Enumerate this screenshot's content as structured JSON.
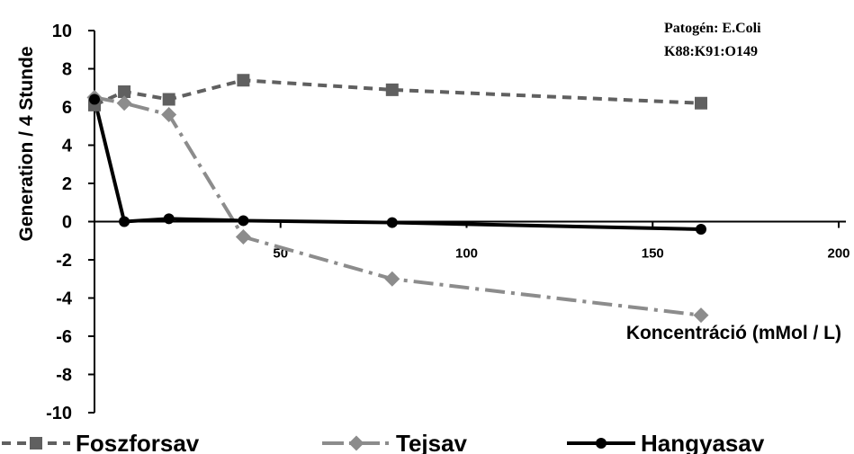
{
  "chart_data": {
    "type": "line",
    "title": "",
    "xlabel": "Koncentráció (mMol / L)",
    "ylabel": "Generation / 4 Stunde",
    "xlim": [
      0,
      200
    ],
    "ylim": [
      -10,
      10
    ],
    "x_ticks": [
      50,
      100,
      150,
      200
    ],
    "y_ticks": [
      10,
      8,
      6,
      4,
      2,
      0,
      -2,
      -4,
      -6,
      -8,
      -10
    ],
    "x_tick_labels": [
      "50",
      "100",
      "150",
      "200"
    ],
    "y_tick_labels": [
      "10",
      "8",
      "6",
      "4",
      "2",
      "0",
      "-2",
      "-4",
      "-6",
      "-8",
      "-10"
    ],
    "grid": false,
    "legend_position": "bottom",
    "annotation_lines": [
      "Patogén: E.Coli",
      "K88:K91:O149"
    ],
    "series": [
      {
        "name": "Foszforsav",
        "marker": "square",
        "line_style": "dashed",
        "color": "#606060",
        "x": [
          0,
          8,
          20,
          40,
          80,
          163
        ],
        "y": [
          6.1,
          6.8,
          6.4,
          7.4,
          6.9,
          6.2
        ]
      },
      {
        "name": "Tejsav",
        "marker": "diamond",
        "line_style": "dash-dot",
        "color": "#8c8c8c",
        "x": [
          0,
          8,
          20,
          40,
          80,
          163
        ],
        "y": [
          6.5,
          6.2,
          5.6,
          -0.8,
          -3.0,
          -4.9
        ]
      },
      {
        "name": "Hangyasav",
        "marker": "circle",
        "line_style": "solid",
        "color": "#000000",
        "x": [
          0,
          8,
          20,
          40,
          80,
          163
        ],
        "y": [
          6.4,
          0.0,
          0.15,
          0.05,
          -0.05,
          -0.4
        ]
      }
    ]
  }
}
